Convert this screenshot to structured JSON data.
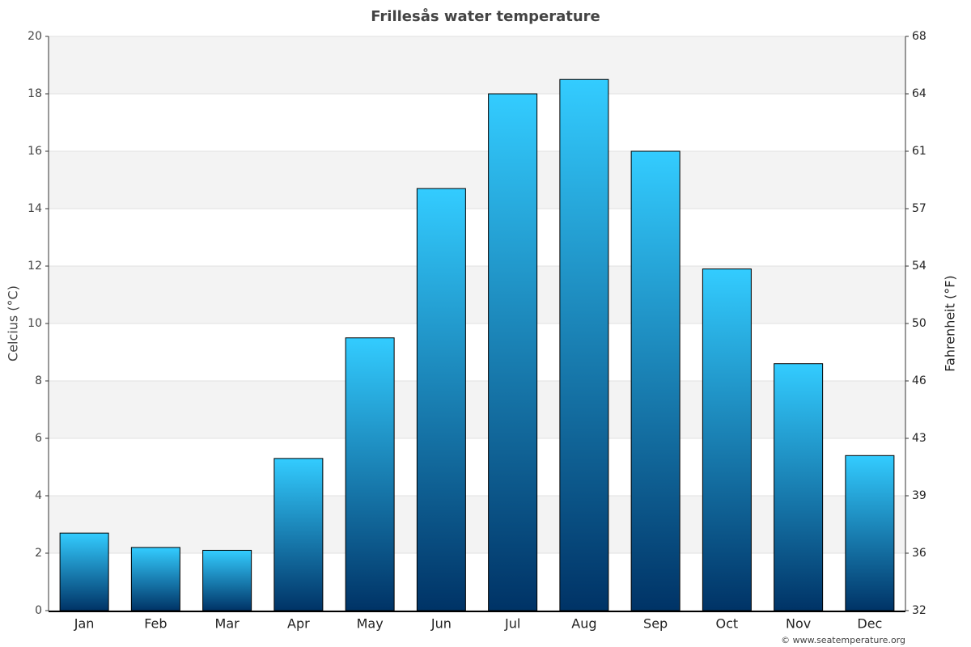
{
  "chart_data": {
    "type": "bar",
    "title": "Frillesås water temperature",
    "y_label": "Celcius (°C)",
    "y2_label": "Fahrenheit (°F)",
    "categories": [
      "Jan",
      "Feb",
      "Mar",
      "Apr",
      "May",
      "Jun",
      "Jul",
      "Aug",
      "Sep",
      "Oct",
      "Nov",
      "Dec"
    ],
    "values": [
      2.7,
      2.2,
      2.1,
      5.3,
      9.5,
      14.7,
      18.0,
      18.5,
      16.0,
      11.9,
      8.6,
      5.4
    ],
    "gradient": [
      "#33ccff",
      "#003366"
    ],
    "ylim": [
      0,
      20
    ],
    "yticks": [
      0,
      2,
      4,
      6,
      8,
      10,
      12,
      14,
      16,
      18,
      20
    ],
    "y2lim": [
      32,
      68
    ],
    "y2ticks": [
      32,
      {
        "value": 35.6,
        "label": "36"
      },
      {
        "value": 39.2,
        "label": "39"
      },
      {
        "value": 42.8,
        "label": "43"
      },
      {
        "value": 46.4,
        "label": "46"
      },
      50,
      {
        "value": 53.6,
        "label": "54"
      },
      {
        "value": 57.2,
        "label": "57"
      },
      {
        "value": 60.8,
        "label": "61"
      },
      {
        "value": 64.4,
        "label": "64"
      },
      68
    ],
    "grid": true,
    "credit": "© www.seatemperature.org"
  }
}
